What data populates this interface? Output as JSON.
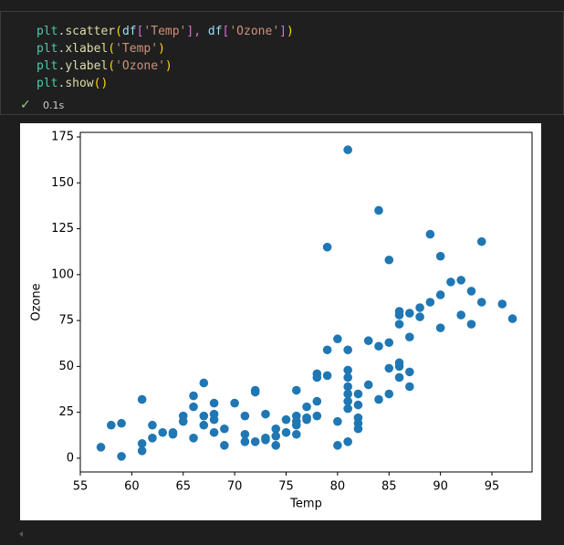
{
  "code": [
    [
      {
        "text": "plt",
        "color": "#4ec9b0"
      },
      {
        "text": ".",
        "color": "#d4d4d4"
      },
      {
        "text": "scatter",
        "color": "#dcdcaa"
      },
      {
        "text": "(",
        "color": "#ffd700"
      },
      {
        "text": "df",
        "color": "#9cdcfe"
      },
      {
        "text": "[",
        "color": "#da70d6"
      },
      {
        "text": "'Temp'",
        "color": "#ce9178"
      },
      {
        "text": "],",
        "color": "#da70d6"
      },
      {
        "text": " df",
        "color": "#9cdcfe"
      },
      {
        "text": "[",
        "color": "#da70d6"
      },
      {
        "text": "'Ozone'",
        "color": "#ce9178"
      },
      {
        "text": "]",
        "color": "#da70d6"
      },
      {
        "text": ")",
        "color": "#ffd700"
      }
    ],
    [
      {
        "text": "plt",
        "color": "#4ec9b0"
      },
      {
        "text": ".",
        "color": "#d4d4d4"
      },
      {
        "text": "xlabel",
        "color": "#dcdcaa"
      },
      {
        "text": "(",
        "color": "#ffd700"
      },
      {
        "text": "'Temp'",
        "color": "#ce9178"
      },
      {
        "text": ")",
        "color": "#ffd700"
      }
    ],
    [
      {
        "text": "plt",
        "color": "#4ec9b0"
      },
      {
        "text": ".",
        "color": "#d4d4d4"
      },
      {
        "text": "ylabel",
        "color": "#dcdcaa"
      },
      {
        "text": "(",
        "color": "#ffd700"
      },
      {
        "text": "'Ozone'",
        "color": "#ce9178"
      },
      {
        "text": ")",
        "color": "#ffd700"
      }
    ],
    [
      {
        "text": "plt",
        "color": "#4ec9b0"
      },
      {
        "text": ".",
        "color": "#d4d4d4"
      },
      {
        "text": "show",
        "color": "#dcdcaa"
      },
      {
        "text": "()",
        "color": "#ffd700"
      }
    ]
  ],
  "status": {
    "check": "✓",
    "time": "0.1s"
  },
  "chart_data": {
    "type": "scatter",
    "x_label": "Temp",
    "y_label": "Ozone",
    "color": "#1f77b4",
    "xlim": [
      55,
      98.9
    ],
    "ylim": [
      -7.5,
      177.5
    ],
    "xticks": [
      55,
      60,
      65,
      70,
      75,
      80,
      85,
      90,
      95
    ],
    "yticks": [
      0,
      25,
      50,
      75,
      100,
      125,
      150,
      175
    ],
    "x": [
      57,
      58,
      59,
      59,
      61,
      61,
      61,
      62,
      62,
      63,
      64,
      64,
      65,
      65,
      66,
      66,
      66,
      67,
      67,
      67,
      68,
      68,
      68,
      68,
      69,
      69,
      70,
      71,
      71,
      71,
      72,
      72,
      72,
      73,
      73,
      73,
      74,
      74,
      74,
      75,
      75,
      76,
      76,
      76,
      76,
      76,
      77,
      77,
      77,
      78,
      78,
      78,
      78,
      79,
      79,
      79,
      80,
      80,
      80,
      81,
      81,
      81,
      81,
      81,
      81,
      81,
      81,
      81,
      82,
      82,
      82,
      82,
      82,
      83,
      83,
      84,
      84,
      84,
      85,
      85,
      85,
      85,
      86,
      86,
      86,
      86,
      86,
      86,
      87,
      87,
      87,
      87,
      88,
      88,
      89,
      89,
      90,
      90,
      90,
      91,
      92,
      92,
      93,
      93,
      94,
      94,
      96,
      97
    ],
    "values": [
      6,
      18,
      19,
      1,
      32,
      8,
      4,
      18,
      11,
      14,
      14,
      13,
      23,
      20,
      34,
      28,
      11,
      41,
      23,
      18,
      30,
      24,
      21,
      14,
      16,
      7,
      30,
      23,
      13,
      9,
      37,
      36,
      9,
      24,
      11,
      10,
      16,
      12,
      7,
      21,
      14,
      37,
      23,
      20,
      18,
      13,
      22,
      21,
      28,
      46,
      44,
      31,
      23,
      115,
      59,
      45,
      65,
      20,
      7,
      168,
      59,
      48,
      44,
      39,
      35,
      31,
      27,
      9,
      29,
      22,
      19,
      16,
      35,
      64,
      40,
      135,
      61,
      32,
      108,
      63,
      49,
      35,
      80,
      78,
      73,
      52,
      50,
      44,
      79,
      66,
      47,
      39,
      82,
      77,
      122,
      85,
      110,
      89,
      71,
      96,
      97,
      78,
      91,
      73,
      118,
      85,
      84,
      76
    ]
  }
}
